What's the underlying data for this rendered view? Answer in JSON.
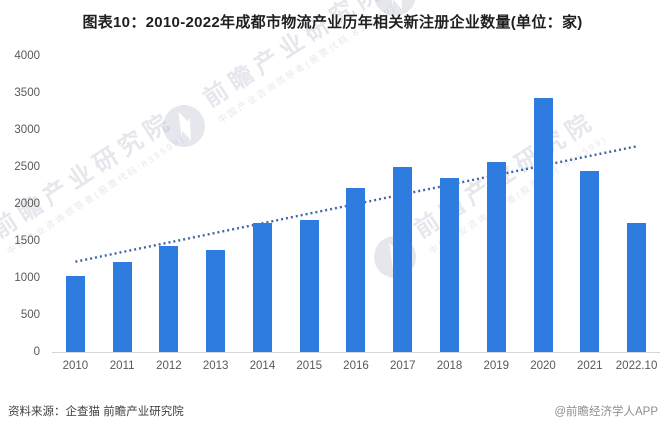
{
  "title": "图表10：2010-2022年成都市物流产业历年相关新注册企业数量(单位：家)",
  "chart_data": {
    "type": "bar",
    "title": "图表10：2010-2022年成都市物流产业历年相关新注册企业数量(单位：家)",
    "unit": "家",
    "categories": [
      "2010",
      "2011",
      "2012",
      "2013",
      "2014",
      "2015",
      "2016",
      "2017",
      "2018",
      "2019",
      "2020",
      "2021",
      "2022.10"
    ],
    "values": [
      1030,
      1210,
      1430,
      1380,
      1750,
      1790,
      2210,
      2500,
      2350,
      2570,
      3430,
      2440,
      1740
    ],
    "ylim": [
      0,
      4000
    ],
    "yticks": [
      0,
      500,
      1000,
      1500,
      2000,
      2500,
      3000,
      3500,
      4000
    ],
    "grid": false,
    "legend": "none",
    "bar_color": "#2e7ce0",
    "trendline": {
      "style": "dotted",
      "color": "#3f66a6",
      "start_value": 1220,
      "end_value": 2780
    }
  },
  "footer": {
    "source": "资料来源：企查猫 前瞻产业研究院",
    "credit": "@前瞻经济学人APP"
  },
  "watermark": {
    "brand": "前瞻产业研究院",
    "tagline": "中国产业咨询领导者(股票代码:839599)"
  }
}
